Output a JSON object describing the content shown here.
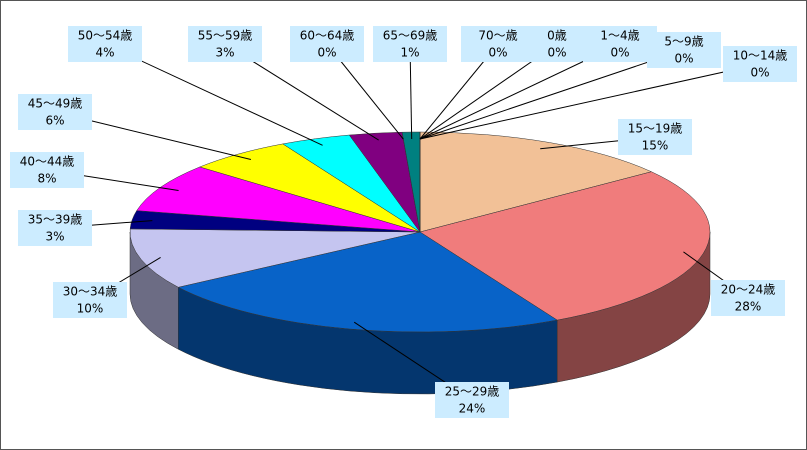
{
  "chart_data": {
    "type": "pie3d",
    "categories": [
      "15〜19歳",
      "20〜24歳",
      "25〜29歳",
      "30〜34歳",
      "35〜39歳",
      "40〜44歳",
      "45〜49歳",
      "50〜54歳",
      "55〜59歳",
      "60〜64歳",
      "65〜69歳",
      "70〜歳",
      "0歳",
      "1〜4歳",
      "5〜9歳",
      "10〜14歳"
    ],
    "values": [
      15,
      28,
      24,
      10,
      3,
      8,
      6,
      4,
      3,
      0,
      1,
      0,
      0,
      0,
      0,
      0
    ],
    "value_labels": [
      "15%",
      "28%",
      "24%",
      "10%",
      "3%",
      "8%",
      "6%",
      "4%",
      "3%",
      "0%",
      "1%",
      "0%",
      "0%",
      "0%",
      "0%",
      "0%"
    ],
    "colors": [
      "#f2c197",
      "#f07c7c",
      "#0863c8",
      "#c5c5f0",
      "#000080",
      "#ff00ff",
      "#ffff00",
      "#00ffff",
      "#800080",
      "#993366",
      "#008080",
      "#0000ff",
      "#ff8080",
      "#00ccff",
      "#ccffcc",
      "#ffff99"
    ]
  }
}
